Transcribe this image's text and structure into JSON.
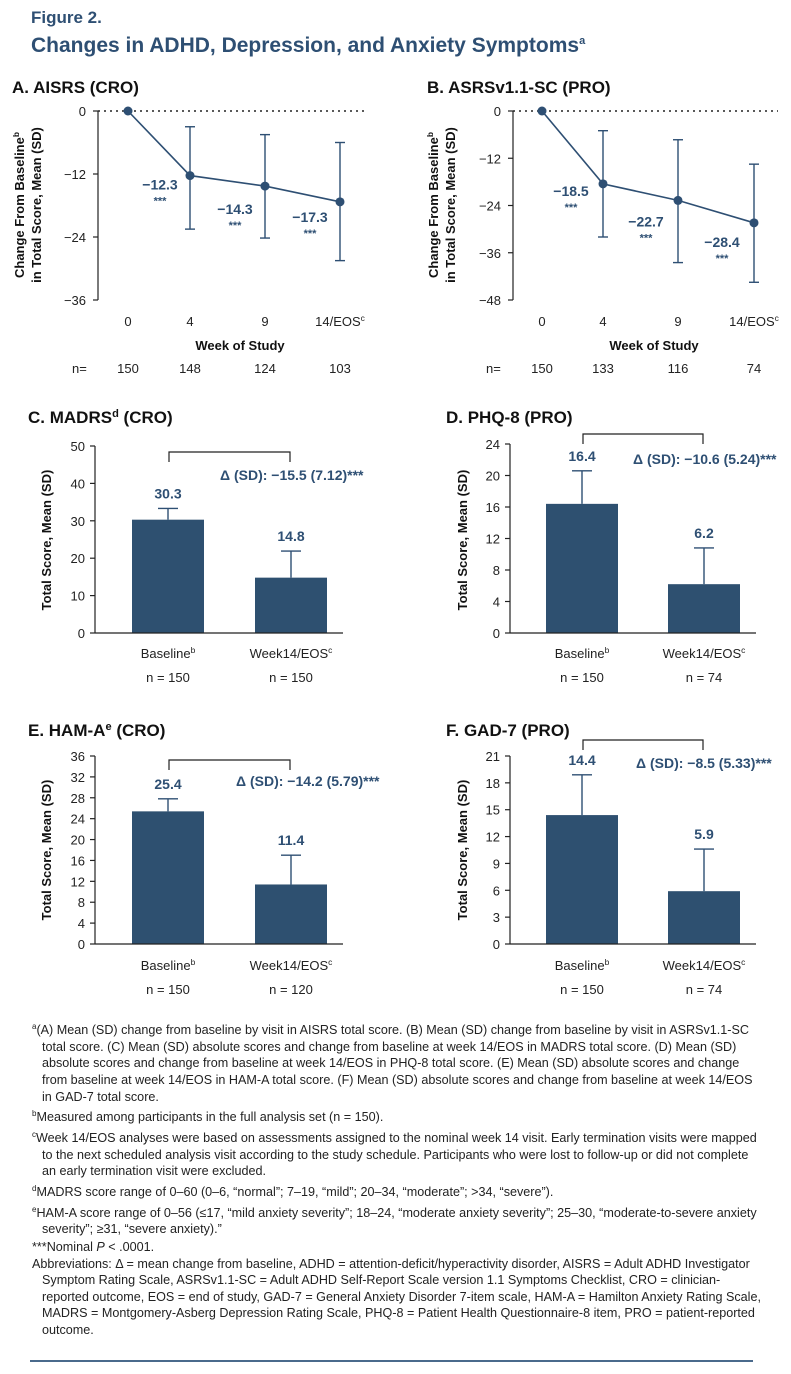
{
  "figure_label": "Figure 2.",
  "figure_title": "Changes in ADHD, Depression, and Anxiety Symptoms",
  "figure_title_sup": "a",
  "colors": {
    "navy": "#2e4f73",
    "bar": "#2e5070",
    "text": "#222222"
  },
  "chart_data": [
    {
      "id": "A",
      "type": "line",
      "title": "A. AISRS (CRO)",
      "ylabel": "Change From Baseline",
      "ylabel_sup": "b",
      "ylabel_line2": "in Total Score, Mean (SD)",
      "xlabel": "Week of Study",
      "categories": [
        "0",
        "4",
        "9",
        "14/EOS"
      ],
      "category_sup": [
        "",
        "",
        "",
        "c"
      ],
      "yticks": [
        "0",
        "−12",
        "−24",
        "−36"
      ],
      "ylim": [
        -36,
        0
      ],
      "values": [
        0,
        -12.3,
        -14.3,
        -17.3
      ],
      "error_high": [
        null,
        -3.0,
        -4.5,
        -6.0
      ],
      "error_low": [
        null,
        -22.5,
        -24.2,
        -28.5
      ],
      "data_labels": [
        "",
        "−12.3",
        "−14.3",
        "−17.3"
      ],
      "significance": [
        "",
        "***",
        "***",
        "***"
      ],
      "n_label": "n=",
      "n": [
        "150",
        "148",
        "124",
        "103"
      ]
    },
    {
      "id": "B",
      "type": "line",
      "title": "B. ASRSv1.1-SC (PRO)",
      "ylabel": "Change From Baseline",
      "ylabel_sup": "b",
      "ylabel_line2": "in Total Score, Mean (SD)",
      "xlabel": "Week of Study",
      "categories": [
        "0",
        "4",
        "9",
        "14/EOS"
      ],
      "category_sup": [
        "",
        "",
        "",
        "c"
      ],
      "yticks": [
        "0",
        "−12",
        "−24",
        "−36",
        "−48"
      ],
      "ylim": [
        -48,
        0
      ],
      "values": [
        0,
        -18.5,
        -22.7,
        -28.4
      ],
      "error_high": [
        null,
        -5.0,
        -7.3,
        -13.5
      ],
      "error_low": [
        null,
        -32.0,
        -38.5,
        -43.5
      ],
      "data_labels": [
        "",
        "−18.5",
        "−22.7",
        "−28.4"
      ],
      "significance": [
        "",
        "***",
        "***",
        "***"
      ],
      "n_label": "n=",
      "n": [
        "150",
        "133",
        "116",
        "74"
      ]
    },
    {
      "id": "C",
      "type": "bar",
      "title": "C. MADRS",
      "title_sup": "d",
      "title_suffix": " (CRO)",
      "ylabel": "Total Score, Mean (SD)",
      "categories": [
        "Baseline",
        "Week14/EOS"
      ],
      "category_sup": [
        "b",
        "c"
      ],
      "n": [
        "n = 150",
        "n = 150"
      ],
      "yticks": [
        "0",
        "10",
        "20",
        "30",
        "40",
        "50"
      ],
      "ylim": [
        0,
        50
      ],
      "values": [
        30.3,
        14.8
      ],
      "error_high": [
        33.3,
        21.9
      ],
      "data_labels": [
        "30.3",
        "14.8"
      ],
      "delta_text": "Δ (SD): −15.5 (7.12)***"
    },
    {
      "id": "D",
      "type": "bar",
      "title": "D. PHQ-8 (PRO)",
      "title_sup": "",
      "title_suffix": "",
      "ylabel": "Total Score, Mean (SD)",
      "categories": [
        "Baseline",
        "Week14/EOS"
      ],
      "category_sup": [
        "b",
        "c"
      ],
      "n": [
        "n = 150",
        "n = 74"
      ],
      "yticks": [
        "0",
        "4",
        "8",
        "12",
        "16",
        "20",
        "24"
      ],
      "ylim": [
        0,
        24
      ],
      "values": [
        16.4,
        6.2
      ],
      "error_high": [
        20.6,
        10.8
      ],
      "data_labels": [
        "16.4",
        "6.2"
      ],
      "delta_text": "Δ (SD): −10.6 (5.24)***"
    },
    {
      "id": "E",
      "type": "bar",
      "title": "E. HAM-A",
      "title_sup": "e",
      "title_suffix": " (CRO)",
      "ylabel": "Total Score, Mean (SD)",
      "categories": [
        "Baseline",
        "Week14/EOS"
      ],
      "category_sup": [
        "b",
        "c"
      ],
      "n": [
        "n = 150",
        "n = 120"
      ],
      "yticks": [
        "0",
        "4",
        "8",
        "12",
        "16",
        "20",
        "24",
        "28",
        "32",
        "36"
      ],
      "ylim": [
        0,
        36
      ],
      "values": [
        25.4,
        11.4
      ],
      "error_high": [
        27.8,
        17.0
      ],
      "data_labels": [
        "25.4",
        "11.4"
      ],
      "delta_text": "Δ (SD): −14.2 (5.79)***"
    },
    {
      "id": "F",
      "type": "bar",
      "title": "F. GAD-7 (PRO)",
      "title_sup": "",
      "title_suffix": "",
      "ylabel": "Total Score, Mean (SD)",
      "categories": [
        "Baseline",
        "Week14/EOS"
      ],
      "category_sup": [
        "b",
        "c"
      ],
      "n": [
        "n = 150",
        "n = 74"
      ],
      "yticks": [
        "0",
        "3",
        "6",
        "9",
        "12",
        "15",
        "18",
        "21"
      ],
      "ylim": [
        0,
        21
      ],
      "values": [
        14.4,
        5.9
      ],
      "error_high": [
        18.9,
        10.6
      ],
      "data_labels": [
        "14.4",
        "5.9"
      ],
      "delta_text": "Δ (SD): −8.5 (5.33)***"
    }
  ],
  "footnotes": {
    "a_mark": "a",
    "a": "(A) Mean (SD) change from baseline by visit in AISRS total score. (B) Mean (SD) change from baseline by visit in ASRSv1.1-SC total score. (C) Mean (SD) absolute scores and change from baseline at week 14/EOS in MADRS total score. (D) Mean (SD) absolute scores and change from baseline at week 14/EOS in PHQ-8 total score. (E) Mean (SD) absolute scores and change from baseline at week 14/EOS in HAM-A total score. (F) Mean (SD) absolute scores and change from baseline at week 14/EOS in GAD-7 total score.",
    "b_mark": "b",
    "b": "Measured among participants in the full analysis set (n = 150).",
    "c_mark": "c",
    "c": "Week 14/EOS analyses were based on assessments assigned to the nominal week 14 visit. Early termination visits were mapped to the next scheduled analysis visit according to the study schedule. Participants who were lost to follow-up or did not complete an early termination visit were excluded.",
    "d_mark": "d",
    "d": "MADRS score range of 0–60 (0–6, “normal”; 7–19, “mild”; 20–34, “moderate”; >34, “severe”).",
    "e_mark": "e",
    "e": "HAM-A score range of 0–56 (≤17, “mild anxiety severity”; 18–24, “moderate anxiety severity”; 25–30, “moderate-to-severe anxiety severity”; ≥31, “severe anxiety).”",
    "nominal_prefix": "***Nominal ",
    "nominal_p": "P",
    "nominal_suffix": " < .0001.",
    "abbreviations": "Abbreviations: Δ = mean change from baseline, ADHD = attention-deficit/hyperactivity disorder, AISRS = Adult ADHD Investigator Symptom Rating Scale, ASRSv1.1-SC = Adult ADHD Self-Report Scale version 1.1 Symptoms Checklist, CRO = clinician-reported outcome, EOS = end of study, GAD-7 = General Anxiety Disorder 7-item scale, HAM-A = Hamilton Anxiety Rating Scale, MADRS = Montgomery-Asberg Depression Rating Scale, PHQ-8 = Patient Health Questionnaire-8 item, PRO = patient-reported outcome."
  }
}
